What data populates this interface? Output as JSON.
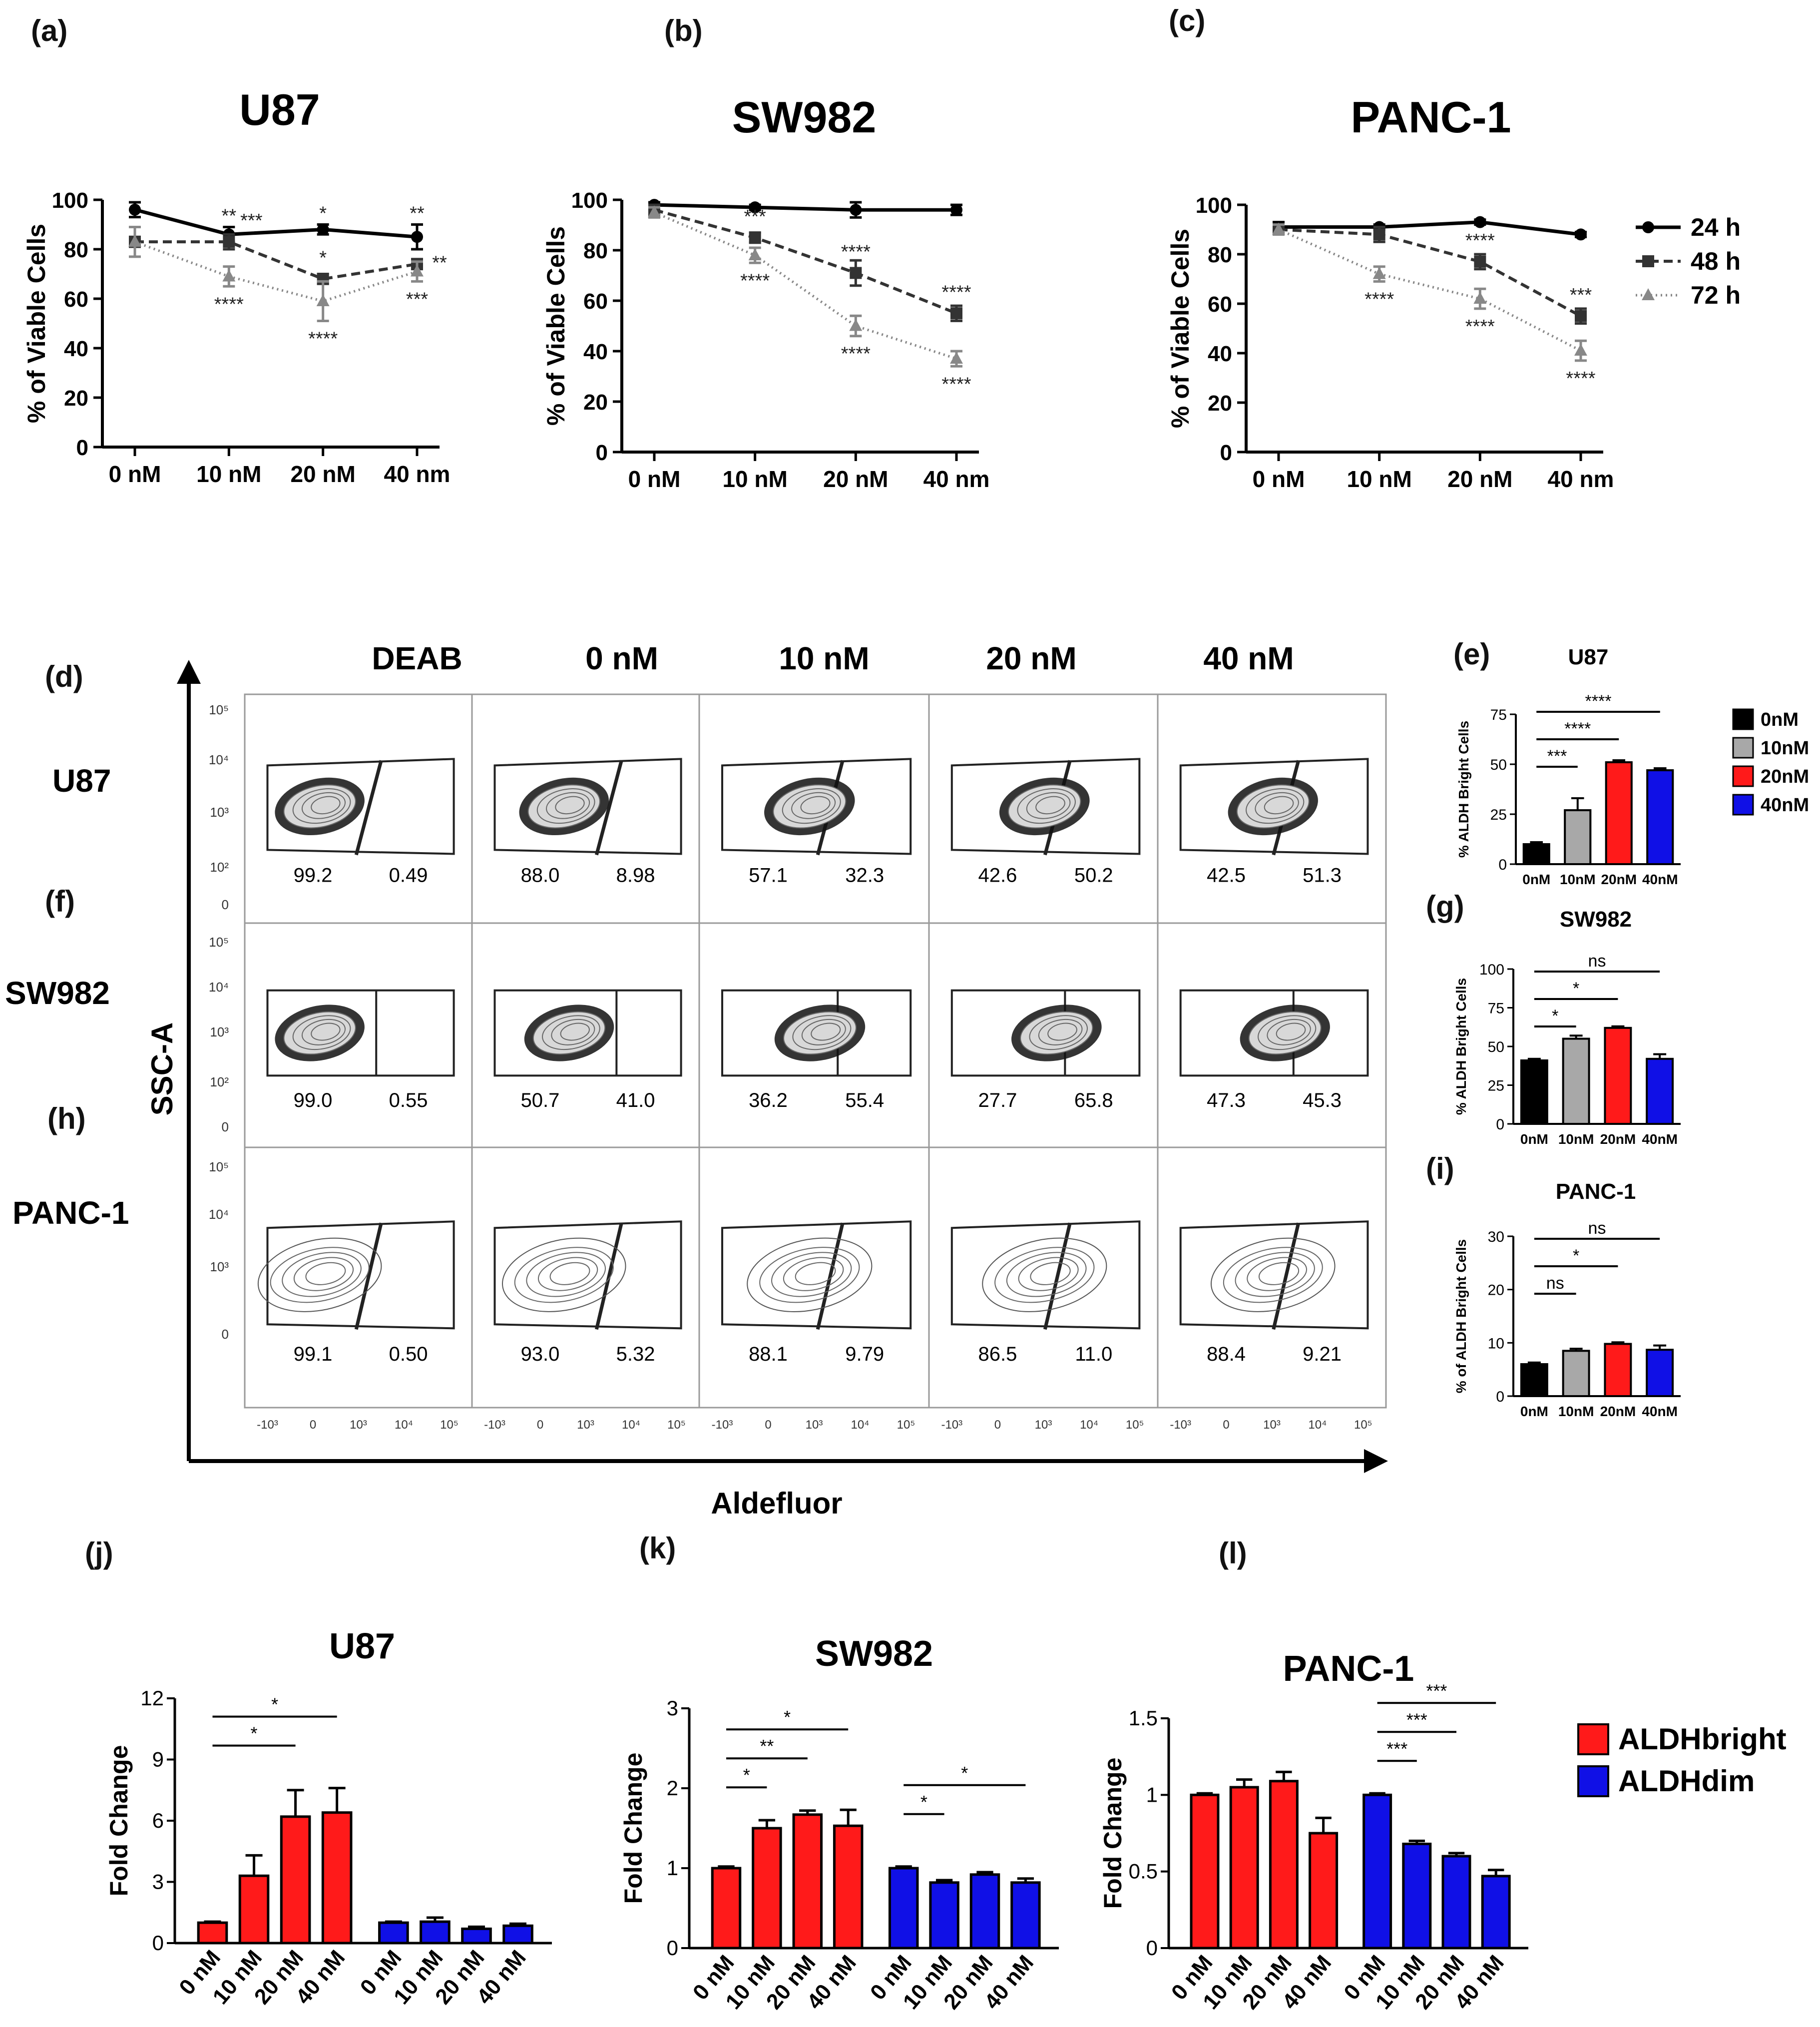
{
  "figure": {
    "panel_labels": {
      "a": "(a)",
      "b": "(b)",
      "c": "(c)",
      "d": "(d)",
      "e": "(e)",
      "f": "(f)",
      "g": "(g)",
      "h": "(h)",
      "i": "(i)",
      "j": "(j)",
      "k": "(k)",
      "l": "(l)"
    },
    "flow": {
      "columns": [
        "DEAB",
        "0 nM",
        "10 nM",
        "20 nM",
        "40 nM"
      ],
      "rows": [
        "U87",
        "SW982",
        "PANC-1"
      ],
      "y_axis_label": "SSC-A",
      "x_axis_label": "Aldefluor",
      "y_ticks": [
        "10⁵",
        "10⁴",
        "10³",
        "10²",
        "0"
      ],
      "x_ticks": [
        "-10³",
        "0",
        "10³",
        "10⁴",
        "10⁵"
      ],
      "gate_values": [
        [
          [
            "99.2",
            "0.49"
          ],
          [
            "88.0",
            "8.98"
          ],
          [
            "57.1",
            "32.3"
          ],
          [
            "42.6",
            "50.2"
          ],
          [
            "42.5",
            "51.3"
          ]
        ],
        [
          [
            "99.0",
            "0.55"
          ],
          [
            "50.7",
            "41.0"
          ],
          [
            "36.2",
            "55.4"
          ],
          [
            "27.7",
            "65.8"
          ],
          [
            "47.3",
            "45.3"
          ]
        ],
        [
          [
            "99.1",
            "0.50"
          ],
          [
            "93.0",
            "5.32"
          ],
          [
            "88.1",
            "9.79"
          ],
          [
            "86.5",
            "11.0"
          ],
          [
            "88.4",
            "9.21"
          ]
        ]
      ]
    },
    "colors": {
      "black": "#000000",
      "gray": "#a8a8a8",
      "red": "#ff1a1a",
      "blue": "#1010e6"
    }
  },
  "chart_data": [
    {
      "id": "a",
      "type": "line",
      "title": "U87",
      "categories": [
        "0 nM",
        "10 nM",
        "20 nM",
        "40 nm"
      ],
      "ylabel": "% of Viable Cells",
      "ylim": [
        0,
        100
      ],
      "yticks": [
        0,
        20,
        40,
        60,
        80,
        100
      ],
      "series": [
        {
          "name": "24 h",
          "values": [
            96,
            86,
            88,
            85
          ],
          "errors": [
            3,
            3,
            2,
            5
          ]
        },
        {
          "name": "48 h",
          "values": [
            83,
            83,
            68,
            74
          ],
          "errors": [
            2,
            3,
            2,
            2
          ]
        },
        {
          "name": "72 h",
          "values": [
            83,
            69,
            59,
            71
          ],
          "errors": [
            6,
            4,
            8,
            4
          ]
        }
      ],
      "annotations": [
        {
          "series": "24 h",
          "index": 1,
          "text": "**"
        },
        {
          "series": "24 h",
          "index": 2,
          "text": "*"
        },
        {
          "series": "24 h",
          "index": 3,
          "text": "**"
        },
        {
          "series": "48 h",
          "index": 1,
          "text": "***"
        },
        {
          "series": "48 h",
          "index": 2,
          "text": "*"
        },
        {
          "series": "48 h",
          "index": 3,
          "text": "**"
        },
        {
          "series": "72 h",
          "index": 1,
          "text": "****"
        },
        {
          "series": "72 h",
          "index": 2,
          "text": "****"
        },
        {
          "series": "72 h",
          "index": 3,
          "text": "***"
        }
      ]
    },
    {
      "id": "b",
      "type": "line",
      "title": "SW982",
      "categories": [
        "0 nM",
        "10 nM",
        "20 nM",
        "40 nm"
      ],
      "ylabel": "% of Viable Cells",
      "ylim": [
        0,
        100
      ],
      "yticks": [
        0,
        20,
        40,
        60,
        80,
        100
      ],
      "series": [
        {
          "name": "24 h",
          "values": [
            98,
            97,
            96,
            96
          ],
          "errors": [
            1,
            1,
            3,
            2
          ]
        },
        {
          "name": "48 h",
          "values": [
            96,
            85,
            71,
            55
          ],
          "errors": [
            2,
            2,
            5,
            3
          ]
        },
        {
          "name": "72 h",
          "values": [
            95,
            78,
            50,
            37
          ],
          "errors": [
            2,
            3,
            4,
            3
          ]
        }
      ],
      "annotations": [
        {
          "series": "48 h",
          "index": 1,
          "text": "***"
        },
        {
          "series": "48 h",
          "index": 2,
          "text": "****"
        },
        {
          "series": "48 h",
          "index": 3,
          "text": "****"
        },
        {
          "series": "72 h",
          "index": 1,
          "text": "****"
        },
        {
          "series": "72 h",
          "index": 2,
          "text": "****"
        },
        {
          "series": "72 h",
          "index": 3,
          "text": "****"
        }
      ]
    },
    {
      "id": "c",
      "type": "line",
      "title": "PANC-1",
      "categories": [
        "0 nM",
        "10 nM",
        "20 nM",
        "40 nm"
      ],
      "ylabel": "% of Viable Cells",
      "ylim": [
        0,
        100
      ],
      "yticks": [
        0,
        20,
        40,
        60,
        80,
        100
      ],
      "series": [
        {
          "name": "24 h",
          "values": [
            91,
            91,
            93,
            88
          ],
          "errors": [
            2,
            1,
            1,
            1
          ]
        },
        {
          "name": "48 h",
          "values": [
            90,
            88,
            77,
            55
          ],
          "errors": [
            2,
            3,
            3,
            3
          ]
        },
        {
          "name": "72 h",
          "values": [
            90,
            72,
            62,
            41
          ],
          "errors": [
            2,
            3,
            4,
            4
          ]
        }
      ],
      "annotations": [
        {
          "series": "48 h",
          "index": 2,
          "text": "****"
        },
        {
          "series": "48 h",
          "index": 3,
          "text": "***"
        },
        {
          "series": "72 h",
          "index": 1,
          "text": "****"
        },
        {
          "series": "72 h",
          "index": 2,
          "text": "****"
        },
        {
          "series": "72 h",
          "index": 3,
          "text": "****"
        }
      ],
      "legend": [
        "24 h",
        "48 h",
        "72 h"
      ]
    },
    {
      "id": "e",
      "type": "bar",
      "title": "U87",
      "categories": [
        "0nM",
        "10nM",
        "20nM",
        "40nM"
      ],
      "values": [
        10,
        27,
        51,
        47
      ],
      "errors": [
        1,
        6,
        1,
        1
      ],
      "ylabel": "% ALDH Bright Cells",
      "ylim": [
        0,
        75
      ],
      "yticks": [
        0,
        25,
        50,
        75
      ],
      "brackets": [
        {
          "from": 0,
          "to": 1,
          "text": "***"
        },
        {
          "from": 0,
          "to": 2,
          "text": "****"
        },
        {
          "from": 0,
          "to": 3,
          "text": "****"
        }
      ],
      "legend": [
        "0nM",
        "10nM",
        "20nM",
        "40nM"
      ]
    },
    {
      "id": "g",
      "type": "bar",
      "title": "SW982",
      "categories": [
        "0nM",
        "10nM",
        "20nM",
        "40nM"
      ],
      "values": [
        41,
        55,
        62,
        42
      ],
      "errors": [
        1,
        2,
        1,
        3
      ],
      "ylabel": "% ALDH Bright Cells",
      "ylim": [
        0,
        100
      ],
      "yticks": [
        0,
        25,
        50,
        75,
        100
      ],
      "brackets": [
        {
          "from": 0,
          "to": 1,
          "text": "*"
        },
        {
          "from": 0,
          "to": 2,
          "text": "*"
        },
        {
          "from": 0,
          "to": 3,
          "text": "ns"
        }
      ]
    },
    {
      "id": "i",
      "type": "bar",
      "title": "PANC-1",
      "categories": [
        "0nM",
        "10nM",
        "20nM",
        "40nM"
      ],
      "values": [
        6,
        8.5,
        9.8,
        8.7
      ],
      "errors": [
        0.3,
        0.4,
        0.3,
        0.8
      ],
      "ylabel": "% of ALDH Bright Cells",
      "ylim": [
        0,
        30
      ],
      "yticks": [
        0,
        10,
        20,
        30
      ],
      "brackets": [
        {
          "from": 0,
          "to": 1,
          "text": "ns"
        },
        {
          "from": 0,
          "to": 2,
          "text": "*"
        },
        {
          "from": 0,
          "to": 3,
          "text": "ns"
        }
      ]
    },
    {
      "id": "j",
      "type": "bar",
      "title": "U87",
      "categories": [
        "0 nM",
        "10 nM",
        "20 nM",
        "40 nM"
      ],
      "ylabel": "Fold Change",
      "ylim": [
        0,
        12
      ],
      "yticks": [
        0,
        3,
        6,
        9,
        12
      ],
      "series": [
        {
          "name": "ALDHbright",
          "values": [
            1.0,
            3.3,
            6.2,
            6.4
          ],
          "errors": [
            0.05,
            1.0,
            1.3,
            1.2
          ]
        },
        {
          "name": "ALDHdim",
          "values": [
            1.0,
            1.05,
            0.7,
            0.85
          ],
          "errors": [
            0.05,
            0.2,
            0.1,
            0.1
          ]
        }
      ],
      "brackets": [
        {
          "series": "ALDHbright",
          "from": 0,
          "to": 2,
          "text": "*"
        },
        {
          "series": "ALDHbright",
          "from": 0,
          "to": 3,
          "text": "*"
        }
      ]
    },
    {
      "id": "k",
      "type": "bar",
      "title": "SW982",
      "categories": [
        "0 nM",
        "10 nM",
        "20 nM",
        "40 nM"
      ],
      "ylabel": "Fold Change",
      "ylim": [
        0,
        3
      ],
      "yticks": [
        0,
        1,
        2,
        3
      ],
      "series": [
        {
          "name": "ALDHbright",
          "values": [
            1.0,
            1.5,
            1.67,
            1.53
          ],
          "errors": [
            0.02,
            0.1,
            0.05,
            0.2
          ]
        },
        {
          "name": "ALDHdim",
          "values": [
            1.0,
            0.82,
            0.92,
            0.82
          ],
          "errors": [
            0.02,
            0.03,
            0.03,
            0.05
          ]
        }
      ],
      "brackets": [
        {
          "series": "ALDHbright",
          "from": 0,
          "to": 1,
          "text": "*"
        },
        {
          "series": "ALDHbright",
          "from": 0,
          "to": 2,
          "text": "**"
        },
        {
          "series": "ALDHbright",
          "from": 0,
          "to": 3,
          "text": "*"
        },
        {
          "series": "ALDHdim",
          "from": 0,
          "to": 1,
          "text": "*"
        },
        {
          "series": "ALDHdim",
          "from": 0,
          "to": 3,
          "text": "*"
        }
      ]
    },
    {
      "id": "l",
      "type": "bar",
      "title": "PANC-1",
      "categories": [
        "0 nM",
        "10 nM",
        "20 nM",
        "40 nM"
      ],
      "ylabel": "Fold Change",
      "ylim": [
        0,
        1.5
      ],
      "yticks": [
        0.0,
        0.5,
        1.0,
        1.5
      ],
      "series": [
        {
          "name": "ALDHbright",
          "values": [
            1.0,
            1.05,
            1.09,
            0.75
          ],
          "errors": [
            0.01,
            0.05,
            0.06,
            0.1
          ]
        },
        {
          "name": "ALDHdim",
          "values": [
            1.0,
            0.68,
            0.6,
            0.47
          ],
          "errors": [
            0.01,
            0.02,
            0.02,
            0.04
          ]
        }
      ],
      "brackets": [
        {
          "series": "ALDHdim",
          "from": 0,
          "to": 1,
          "text": "***"
        },
        {
          "series": "ALDHdim",
          "from": 0,
          "to": 2,
          "text": "***"
        },
        {
          "series": "ALDHdim",
          "from": 0,
          "to": 3,
          "text": "***"
        }
      ],
      "legend": [
        "ALDHbright",
        "ALDHdim"
      ]
    }
  ]
}
